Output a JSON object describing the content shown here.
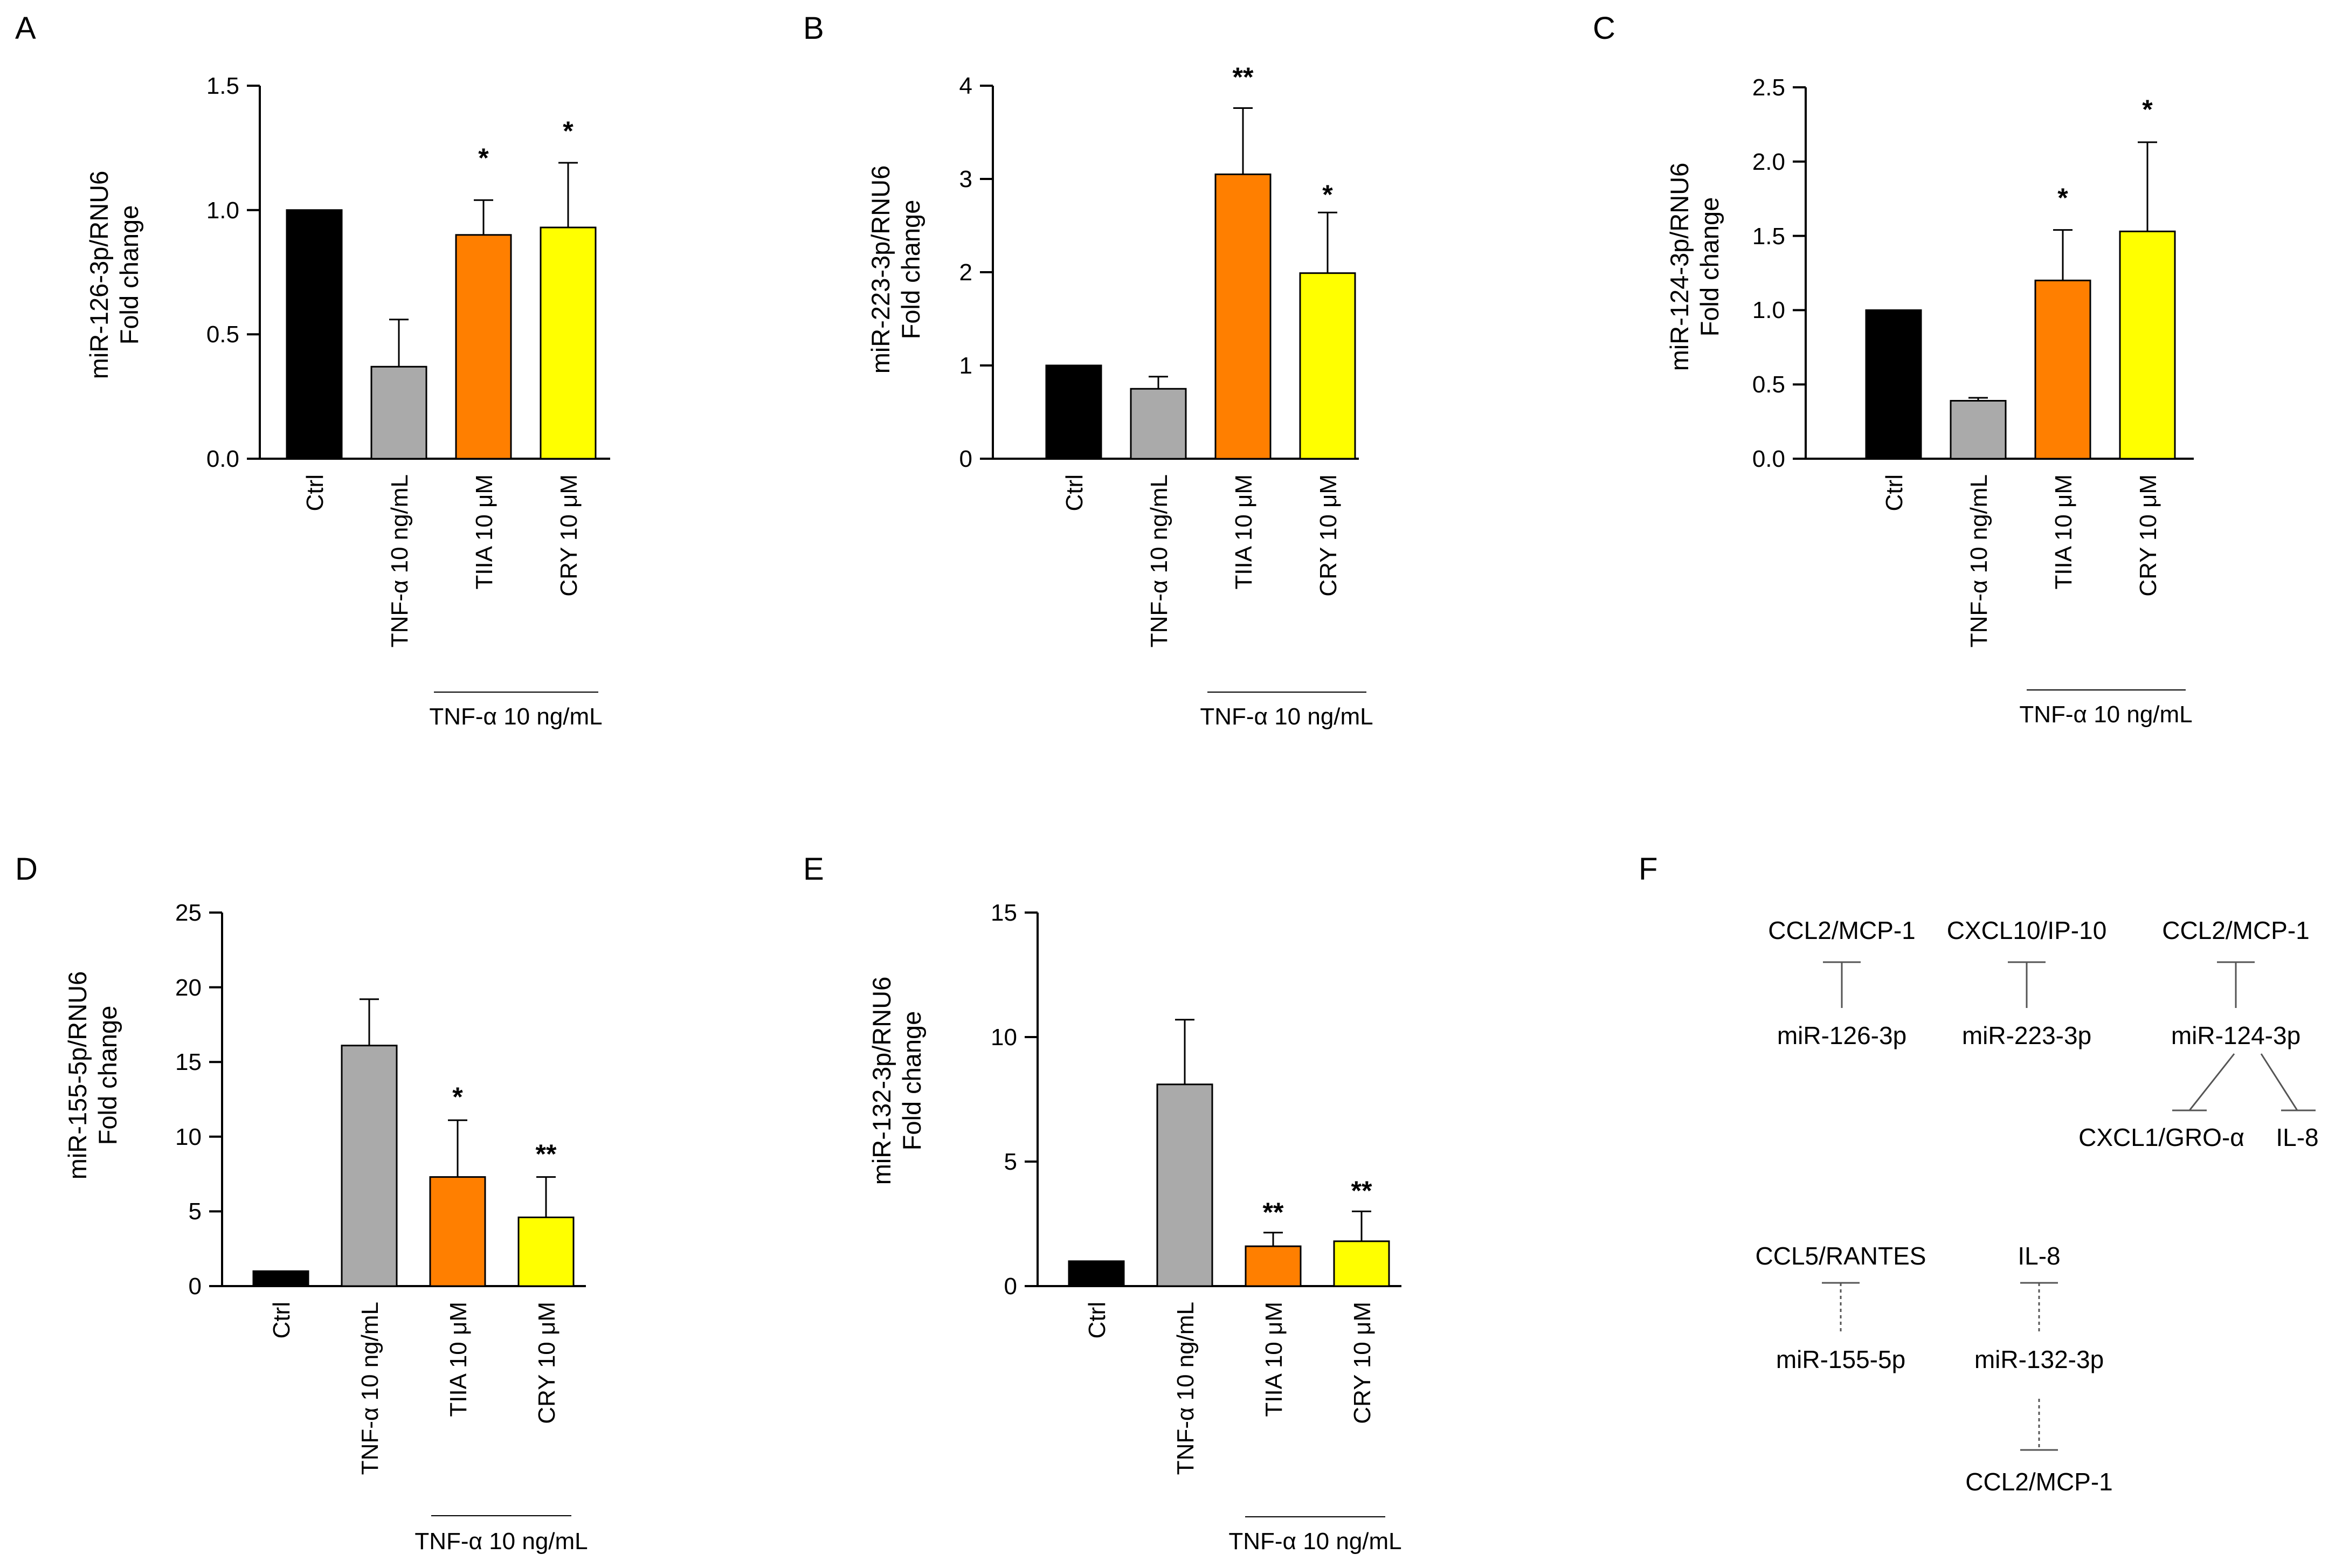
{
  "chart_data": [
    {
      "panel": "A",
      "type": "bar",
      "ylabel_line1": "miR-126-3p/RNU6",
      "ylabel_line2": "Fold change",
      "ylim": [
        0,
        1.5
      ],
      "yticks": [
        "0.0",
        "0.5",
        "1.0",
        "1.5"
      ],
      "categories": [
        "Ctrl",
        "TNF-α 10 ng/mL",
        "TIIA 10 μM",
        "CRY 10 μM"
      ],
      "values": [
        1.0,
        0.37,
        0.9,
        0.93
      ],
      "errors": [
        0,
        0.19,
        0.14,
        0.26
      ],
      "significance": [
        "",
        "",
        "*",
        "*"
      ],
      "colors": [
        "#000000",
        "#aaaaaa",
        "#ff7f00",
        "#ffff00"
      ],
      "group_label": "TNF-α 10 ng/mL"
    },
    {
      "panel": "B",
      "type": "bar",
      "ylabel_line1": "miR-223-3p/RNU6",
      "ylabel_line2": "Fold change",
      "ylim": [
        0,
        4
      ],
      "yticks": [
        "0",
        "1",
        "2",
        "3",
        "4"
      ],
      "categories": [
        "Ctrl",
        "TNF-α 10 ng/mL",
        "TIIA 10 μM",
        "CRY 10 μM"
      ],
      "values": [
        1.0,
        0.75,
        3.05,
        1.99
      ],
      "errors": [
        0,
        0.13,
        0.71,
        0.65
      ],
      "significance": [
        "",
        "",
        "**",
        "*"
      ],
      "colors": [
        "#000000",
        "#aaaaaa",
        "#ff7f00",
        "#ffff00"
      ],
      "group_label": "TNF-α 10 ng/mL"
    },
    {
      "panel": "C",
      "type": "bar",
      "ylabel_line1": "miR-124-3p/RNU6",
      "ylabel_line2": "Fold change",
      "ylim": [
        0,
        2.5
      ],
      "yticks": [
        "0.0",
        "0.5",
        "1.0",
        "1.5",
        "2.0",
        "2.5"
      ],
      "categories": [
        "Ctrl",
        "TNF-α 10 ng/mL",
        "TIIA 10 μM",
        "CRY 10 μM"
      ],
      "values": [
        1.0,
        0.39,
        1.2,
        1.53
      ],
      "errors": [
        0,
        0.02,
        0.34,
        0.6
      ],
      "significance": [
        "",
        "",
        "*",
        "*"
      ],
      "colors": [
        "#000000",
        "#aaaaaa",
        "#ff7f00",
        "#ffff00"
      ],
      "group_label": "TNF-α 10 ng/mL"
    },
    {
      "panel": "D",
      "type": "bar",
      "ylabel_line1": "miR-155-5p/RNU6",
      "ylabel_line2": "Fold change",
      "ylim": [
        0,
        25
      ],
      "yticks": [
        "0",
        "5",
        "10",
        "15",
        "20",
        "25"
      ],
      "categories": [
        "Ctrl",
        "TNF-α 10 ng/mL",
        "TIIA 10 μM",
        "CRY 10 μM"
      ],
      "values": [
        1.0,
        16.1,
        7.3,
        4.6
      ],
      "errors": [
        0,
        3.1,
        3.8,
        2.7
      ],
      "significance": [
        "",
        "",
        "*",
        "**"
      ],
      "colors": [
        "#000000",
        "#aaaaaa",
        "#ff7f00",
        "#ffff00"
      ],
      "group_label": "TNF-α 10 ng/mL"
    },
    {
      "panel": "E",
      "type": "bar",
      "ylabel_line1": "miR-132-3p/RNU6",
      "ylabel_line2": "Fold change",
      "ylim": [
        0,
        15
      ],
      "yticks": [
        "0",
        "5",
        "10",
        "15"
      ],
      "categories": [
        "Ctrl",
        "TNF-α 10 ng/mL",
        "TIIA 10 μM",
        "CRY 10 μM"
      ],
      "values": [
        1.0,
        8.1,
        1.6,
        1.8
      ],
      "errors": [
        0,
        2.6,
        0.55,
        1.2
      ],
      "significance": [
        "",
        "",
        "**",
        "**"
      ],
      "colors": [
        "#000000",
        "#aaaaaa",
        "#ff7f00",
        "#ffff00"
      ],
      "group_label": "TNF-α 10 ng/mL"
    }
  ],
  "diagram": {
    "panel": "F",
    "targets_row1": [
      "CCL2/MCP-1",
      "CXCL10/IP-10",
      "CCL2/MCP-1"
    ],
    "mirnas_row1": [
      "miR-126-3p",
      "miR-223-3p",
      "miR-124-3p"
    ],
    "extra_targets_row1": [
      "CXCL1/GRO-α",
      "IL-8"
    ],
    "targets_row2": [
      "CCL5/RANTES",
      "IL-8"
    ],
    "mirnas_row2": [
      "miR-155-5p",
      "miR-132-3p"
    ],
    "extra_target_row2": "CCL2/MCP-1"
  }
}
